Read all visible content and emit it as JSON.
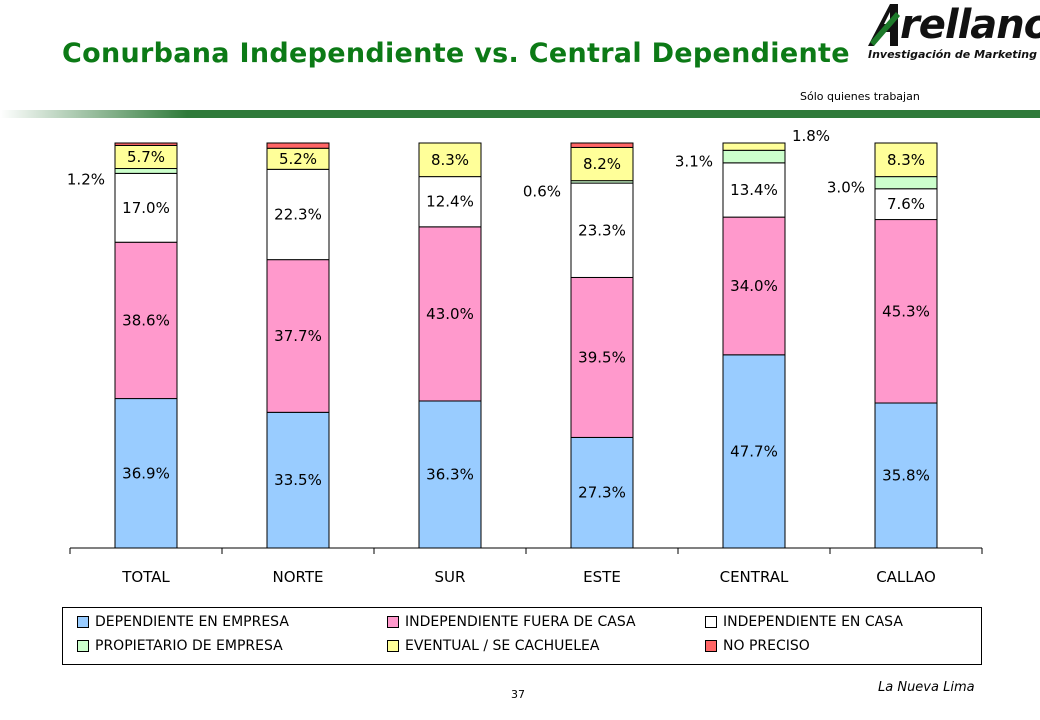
{
  "title": "Conurbana Independiente  vs. Central Dependiente",
  "subnote": "Sólo quienes trabajan",
  "logo": {
    "word": "rellano",
    "sub": "Investigación de Marketing"
  },
  "footer": "La Nueva Lima",
  "page_number": "37",
  "colors": {
    "title": "#0c7a16",
    "rule": "#2f7a3a",
    "dependiente": "#99ccff",
    "independiente_fuera": "#ff99cc",
    "independiente_casa": "#ffffff",
    "propietario": "#ccffcc",
    "eventual": "#ffff99",
    "no_preciso": "#ff6666"
  },
  "chart_data": {
    "type": "bar",
    "stacked": true,
    "categories": [
      "TOTAL",
      "NORTE",
      "SUR",
      "ESTE",
      "CENTRAL",
      "CALLAO"
    ],
    "ylim": [
      0,
      100
    ],
    "legend_position": "bottom",
    "series": [
      {
        "name": "DEPENDIENTE EN EMPRESA",
        "color": "#99ccff",
        "values": [
          36.9,
          33.5,
          36.3,
          27.3,
          47.7,
          35.8
        ],
        "labels": [
          "36.9%",
          "33.5%",
          "36.3%",
          "27.3%",
          "47.7%",
          "35.8%"
        ]
      },
      {
        "name": "INDEPENDIENTE FUERA DE CASA",
        "color": "#ff99cc",
        "values": [
          38.6,
          37.7,
          43.0,
          39.5,
          34.0,
          45.3
        ],
        "labels": [
          "38.6%",
          "37.7%",
          "43.0%",
          "39.5%",
          "34.0%",
          "45.3%"
        ]
      },
      {
        "name": "INDEPENDIENTE EN CASA",
        "color": "#ffffff",
        "values": [
          17.0,
          22.3,
          12.4,
          23.3,
          13.4,
          7.6
        ],
        "labels": [
          "17.0%",
          "22.3%",
          "12.4%",
          "23.3%",
          "13.4%",
          "7.6%"
        ]
      },
      {
        "name": "PROPIETARIO DE EMPRESA",
        "color": "#ccffcc",
        "values": [
          1.2,
          0,
          0,
          0.6,
          3.1,
          3.0
        ],
        "labels": [
          "1.2%",
          "",
          "",
          "0.6%",
          "3.1%",
          "3.0%"
        ]
      },
      {
        "name": "EVENTUAL / SE CACHUELEA",
        "color": "#ffff99",
        "values": [
          5.7,
          5.2,
          8.3,
          8.2,
          1.8,
          8.3
        ],
        "labels": [
          "5.7%",
          "5.2%",
          "8.3%",
          "8.2%",
          "1.8%",
          "8.3%"
        ]
      },
      {
        "name": "NO PRECISO",
        "color": "#ff6666",
        "values": [
          0.6,
          1.3,
          0,
          1.1,
          0,
          0
        ],
        "labels": [
          "",
          "",
          "",
          "",
          "",
          ""
        ]
      }
    ]
  }
}
